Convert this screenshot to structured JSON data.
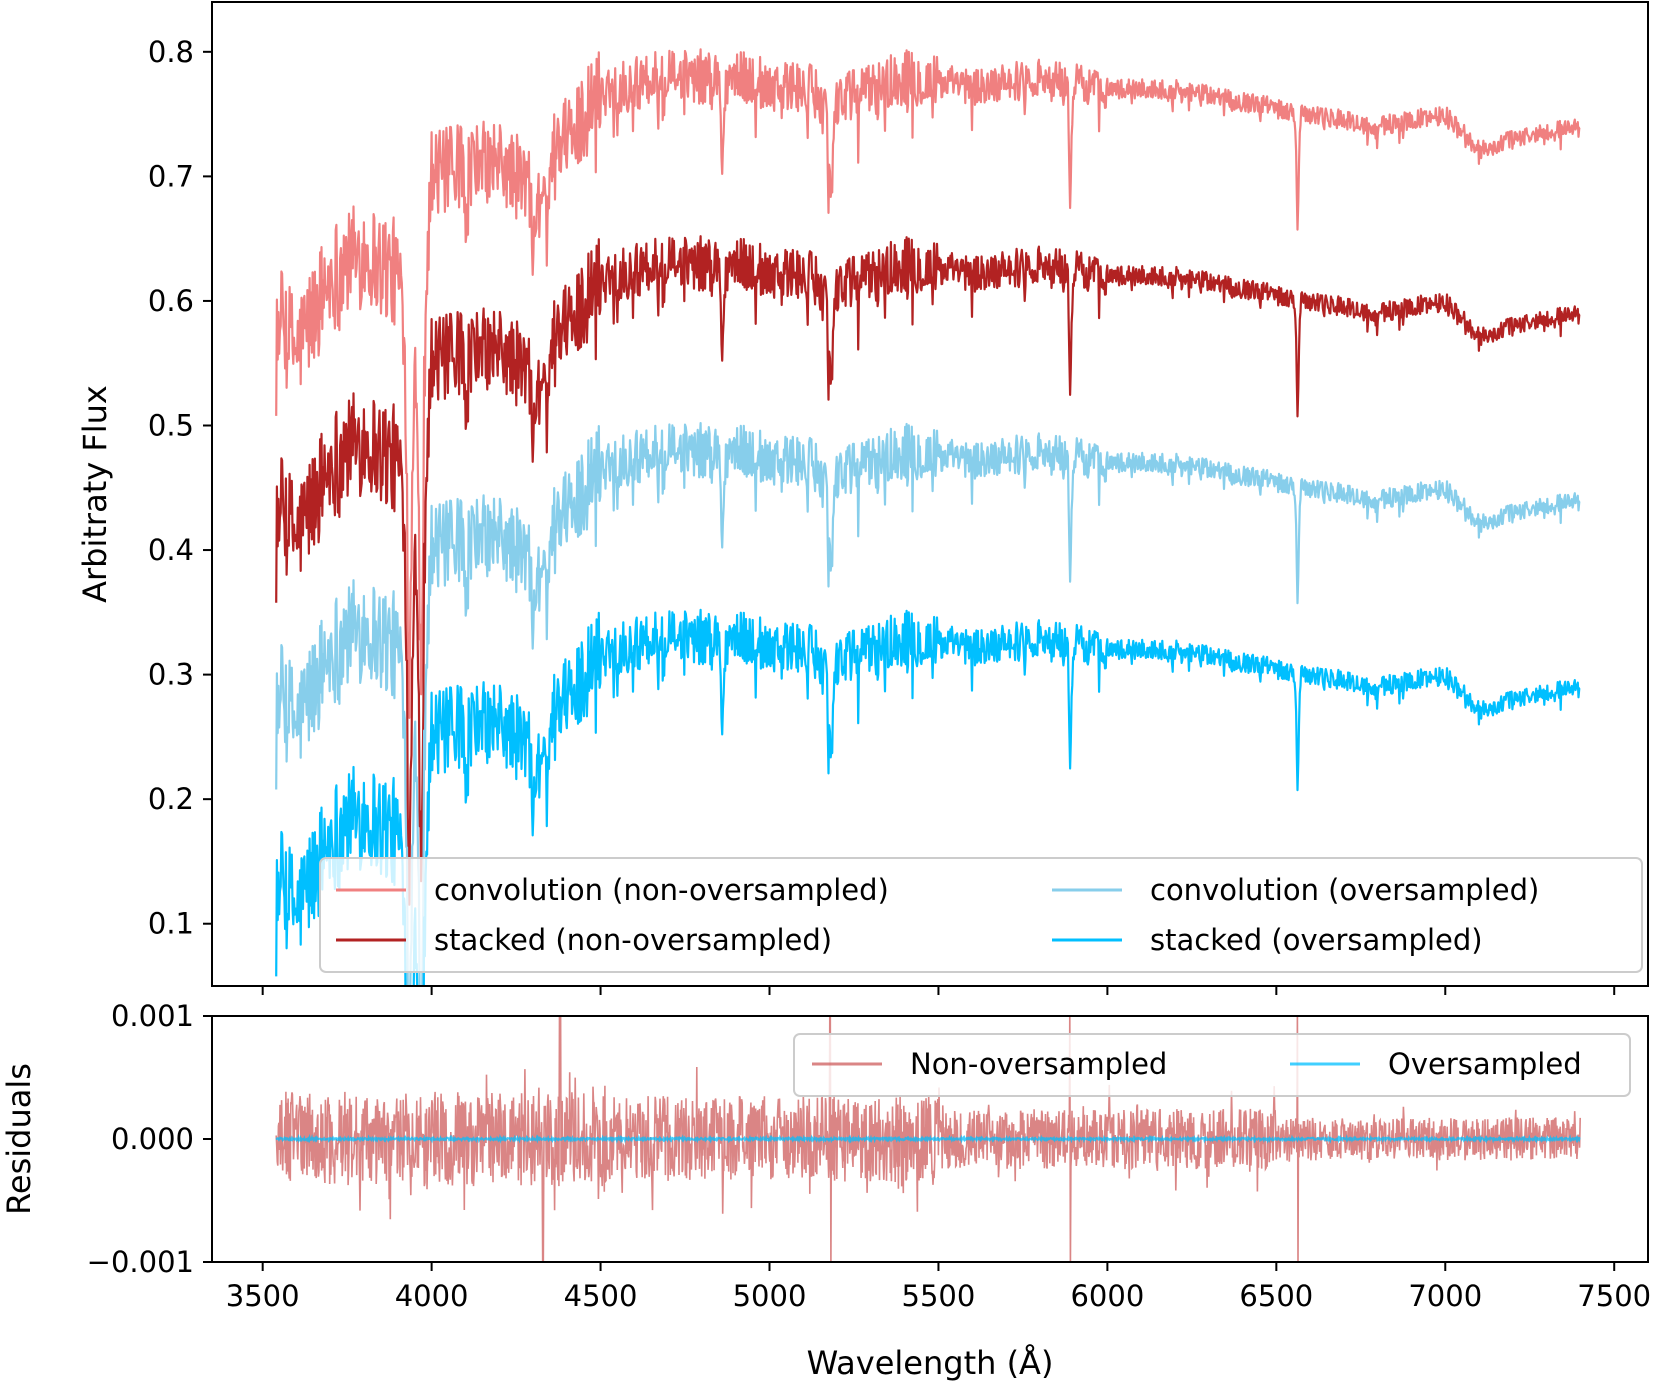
{
  "chart_data": [
    {
      "type": "line",
      "panel": "main",
      "ylabel": "Arbitraty Flux",
      "xlabel": "",
      "xlim": [
        3350,
        7600
      ],
      "ylim": [
        0.05,
        0.84
      ],
      "x_ticks": [
        3500,
        4000,
        4500,
        5000,
        5500,
        6000,
        6500,
        7000,
        7500
      ],
      "y_ticks": [
        0.1,
        0.2,
        0.3,
        0.4,
        0.5,
        0.6,
        0.7,
        0.8
      ],
      "y_tick_labels": [
        "0.1",
        "0.2",
        "0.3",
        "0.4",
        "0.5",
        "0.6",
        "0.7",
        "0.8"
      ],
      "x_range_data": [
        3540,
        7400
      ],
      "legend_position": "lower-right",
      "legend_columns": 2,
      "absorption_lines": [
        3934,
        3969,
        4102,
        4300,
        4340,
        4861,
        5175,
        5184,
        5890,
        6563
      ],
      "series": [
        {
          "name": "convolution (non-oversampled)",
          "color": "#f08080",
          "offset": 0.45,
          "points": [
            [
              3540,
              0.59
            ],
            [
              3600,
              0.56
            ],
            [
              3700,
              0.62
            ],
            [
              3800,
              0.64
            ],
            [
              3900,
              0.62
            ],
            [
              3960,
              0.56
            ],
            [
              4000,
              0.7
            ],
            [
              4100,
              0.71
            ],
            [
              4200,
              0.71
            ],
            [
              4300,
              0.69
            ],
            [
              4400,
              0.73
            ],
            [
              4500,
              0.77
            ],
            [
              4700,
              0.78
            ],
            [
              4900,
              0.78
            ],
            [
              5100,
              0.77
            ],
            [
              5200,
              0.76
            ],
            [
              5400,
              0.78
            ],
            [
              5600,
              0.77
            ],
            [
              5800,
              0.78
            ],
            [
              6000,
              0.77
            ],
            [
              6200,
              0.77
            ],
            [
              6400,
              0.76
            ],
            [
              6600,
              0.75
            ],
            [
              6800,
              0.74
            ],
            [
              7000,
              0.75
            ],
            [
              7100,
              0.72
            ],
            [
              7200,
              0.73
            ],
            [
              7400,
              0.74
            ]
          ]
        },
        {
          "name": "stacked (non-oversampled)",
          "color": "#b22222",
          "offset": 0.3,
          "points": [
            [
              3540,
              0.44
            ],
            [
              3600,
              0.41
            ],
            [
              3700,
              0.47
            ],
            [
              3800,
              0.49
            ],
            [
              3900,
              0.47
            ],
            [
              3960,
              0.41
            ],
            [
              4000,
              0.55
            ],
            [
              4100,
              0.56
            ],
            [
              4200,
              0.56
            ],
            [
              4300,
              0.54
            ],
            [
              4400,
              0.58
            ],
            [
              4500,
              0.62
            ],
            [
              4700,
              0.63
            ],
            [
              4900,
              0.63
            ],
            [
              5100,
              0.62
            ],
            [
              5200,
              0.61
            ],
            [
              5400,
              0.63
            ],
            [
              5600,
              0.62
            ],
            [
              5800,
              0.63
            ],
            [
              6000,
              0.62
            ],
            [
              6200,
              0.62
            ],
            [
              6400,
              0.61
            ],
            [
              6600,
              0.6
            ],
            [
              6800,
              0.59
            ],
            [
              7000,
              0.6
            ],
            [
              7100,
              0.57
            ],
            [
              7200,
              0.58
            ],
            [
              7400,
              0.59
            ]
          ]
        },
        {
          "name": "convolution (oversampled)",
          "color": "#87ceeb",
          "offset": 0.15,
          "points": [
            [
              3540,
              0.29
            ],
            [
              3600,
              0.26
            ],
            [
              3700,
              0.32
            ],
            [
              3800,
              0.34
            ],
            [
              3900,
              0.32
            ],
            [
              3960,
              0.26
            ],
            [
              4000,
              0.4
            ],
            [
              4100,
              0.41
            ],
            [
              4200,
              0.41
            ],
            [
              4300,
              0.39
            ],
            [
              4400,
              0.43
            ],
            [
              4500,
              0.47
            ],
            [
              4700,
              0.48
            ],
            [
              4900,
              0.48
            ],
            [
              5100,
              0.47
            ],
            [
              5200,
              0.46
            ],
            [
              5400,
              0.48
            ],
            [
              5600,
              0.47
            ],
            [
              5800,
              0.48
            ],
            [
              6000,
              0.47
            ],
            [
              6200,
              0.47
            ],
            [
              6400,
              0.46
            ],
            [
              6600,
              0.45
            ],
            [
              6800,
              0.44
            ],
            [
              7000,
              0.45
            ],
            [
              7100,
              0.42
            ],
            [
              7200,
              0.43
            ],
            [
              7400,
              0.44
            ]
          ]
        },
        {
          "name": "stacked (oversampled)",
          "color": "#00bfff",
          "offset": 0.0,
          "points": [
            [
              3540,
              0.14
            ],
            [
              3600,
              0.11
            ],
            [
              3700,
              0.17
            ],
            [
              3800,
              0.19
            ],
            [
              3900,
              0.17
            ],
            [
              3960,
              0.11
            ],
            [
              4000,
              0.25
            ],
            [
              4100,
              0.26
            ],
            [
              4200,
              0.26
            ],
            [
              4300,
              0.24
            ],
            [
              4400,
              0.28
            ],
            [
              4500,
              0.32
            ],
            [
              4700,
              0.33
            ],
            [
              4900,
              0.33
            ],
            [
              5100,
              0.32
            ],
            [
              5200,
              0.31
            ],
            [
              5400,
              0.33
            ],
            [
              5600,
              0.32
            ],
            [
              5800,
              0.33
            ],
            [
              6000,
              0.32
            ],
            [
              6200,
              0.32
            ],
            [
              6400,
              0.31
            ],
            [
              6600,
              0.3
            ],
            [
              6800,
              0.29
            ],
            [
              7000,
              0.3
            ],
            [
              7100,
              0.27
            ],
            [
              7200,
              0.28
            ],
            [
              7400,
              0.29
            ]
          ]
        }
      ]
    },
    {
      "type": "line",
      "panel": "residuals",
      "ylabel": "Residuals",
      "xlabel": "Wavelength (Å)",
      "xlim": [
        3350,
        7600
      ],
      "ylim": [
        -0.001,
        0.001
      ],
      "x_ticks": [
        3500,
        4000,
        4500,
        5000,
        5500,
        6000,
        6500,
        7000,
        7500
      ],
      "x_tick_labels": [
        "3500",
        "4000",
        "4500",
        "5000",
        "5500",
        "6000",
        "6500",
        "7000",
        "7500"
      ],
      "y_ticks": [
        -0.001,
        0.0,
        0.001
      ],
      "y_tick_labels": [
        "−0.001",
        "0.000",
        "0.001"
      ],
      "legend_position": "top-right",
      "legend_columns": 2,
      "series": [
        {
          "name": "Non-oversampled",
          "color": "#cd5c5c",
          "typical_amplitude": 0.00035,
          "max_amplitude": 0.001
        },
        {
          "name": "Oversampled",
          "color": "#00bfff",
          "typical_amplitude": 1e-05
        }
      ]
    }
  ]
}
